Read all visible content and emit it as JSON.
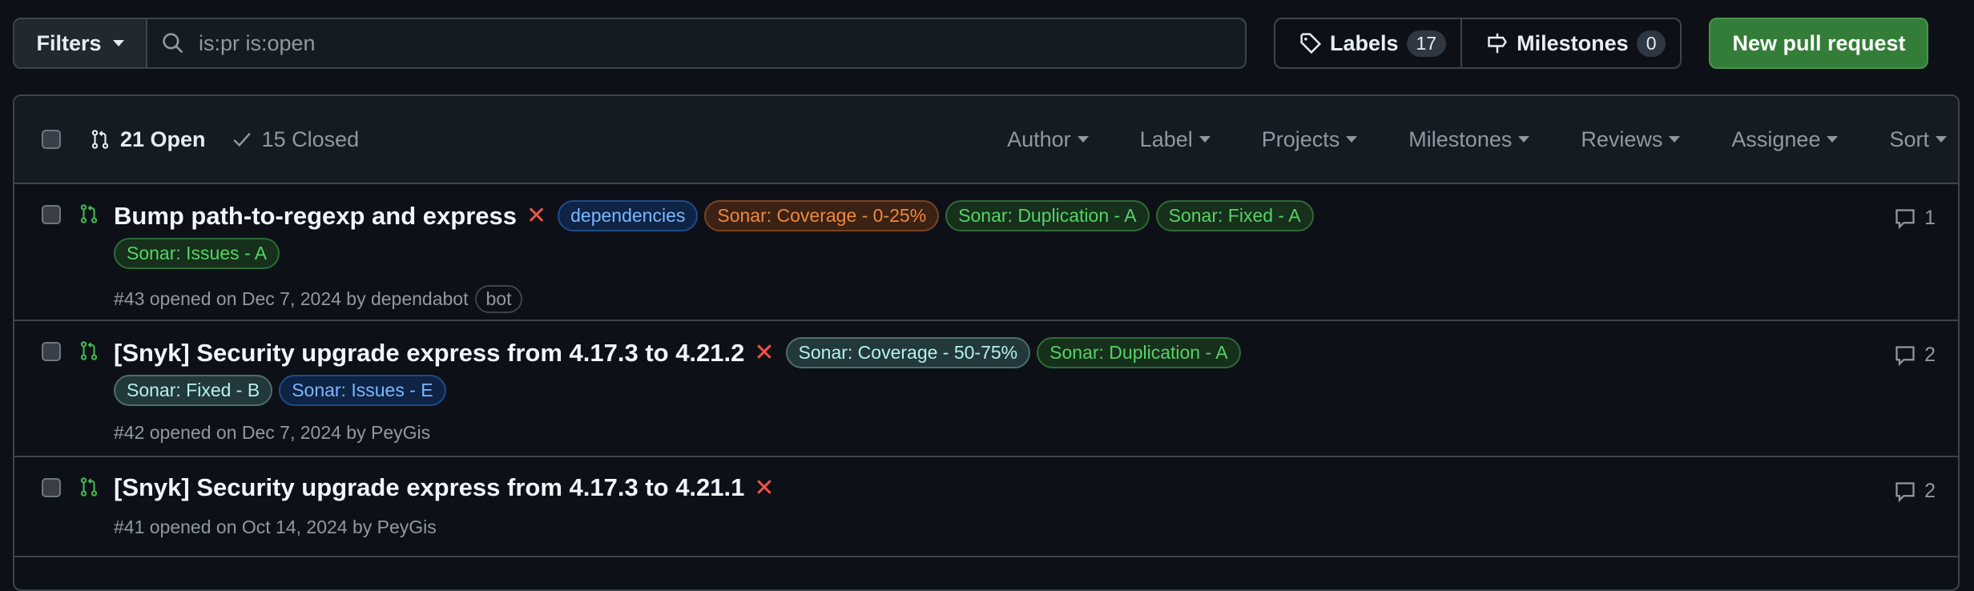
{
  "toolbar": {
    "filters_label": "Filters",
    "search_value": "is:pr is:open",
    "labels_label": "Labels",
    "labels_count": "17",
    "milestones_label": "Milestones",
    "milestones_count": "0",
    "new_pr_label": "New pull request"
  },
  "list_header": {
    "open_label": "21 Open",
    "closed_label": "15 Closed",
    "menus": [
      "Author",
      "Label",
      "Projects",
      "Milestones",
      "Reviews",
      "Assignee",
      "Sort"
    ]
  },
  "colors": {
    "open_green": "#3fb950",
    "fail_red": "#f85149",
    "primary_button": "#347d39"
  },
  "pull_requests": [
    {
      "title": "Bump path-to-regexp and express",
      "status": "failing",
      "labels": [
        {
          "text": "dependencies",
          "color": "blue"
        },
        {
          "text": "Sonar: Coverage - 0-25%",
          "color": "orange"
        },
        {
          "text": "Sonar: Duplication - A",
          "color": "green"
        },
        {
          "text": "Sonar: Fixed - A",
          "color": "green"
        },
        {
          "text": "Sonar: Issues - A",
          "color": "green"
        }
      ],
      "meta": "#43 opened on Dec 7, 2024 by dependabot",
      "badge": "bot",
      "comments": "1"
    },
    {
      "title": "[Snyk] Security upgrade express from 4.17.3 to 4.21.2",
      "status": "failing",
      "labels": [
        {
          "text": "Sonar: Coverage - 50-75%",
          "color": "teal"
        },
        {
          "text": "Sonar: Duplication - A",
          "color": "green"
        },
        {
          "text": "Sonar: Fixed - B",
          "color": "teal"
        },
        {
          "text": "Sonar: Issues - E",
          "color": "blue"
        }
      ],
      "meta": "#42 opened on Dec 7, 2024 by PeyGis",
      "comments": "2"
    },
    {
      "title": "[Snyk] Security upgrade express from 4.17.3 to 4.21.1",
      "status": "failing",
      "labels": [],
      "meta": "#41 opened on Oct 14, 2024 by PeyGis",
      "comments": "2"
    }
  ]
}
